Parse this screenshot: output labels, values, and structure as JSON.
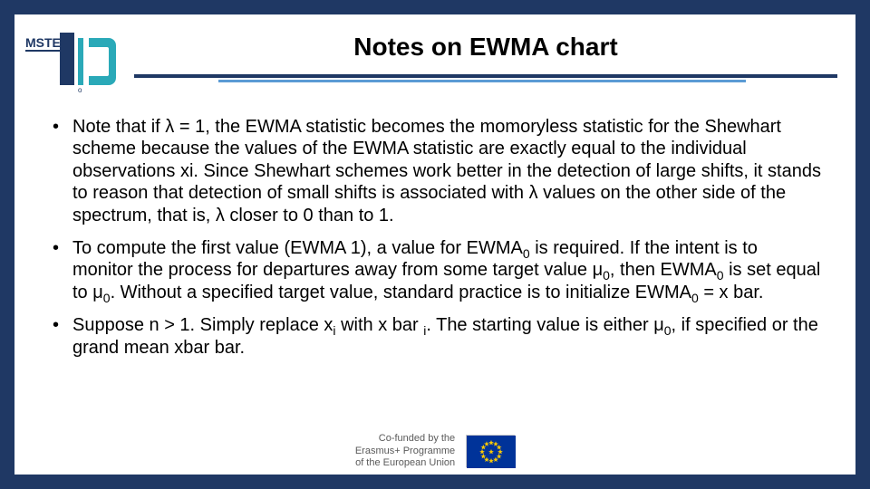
{
  "colors": {
    "frame": "#1f3864",
    "rule_primary": "#1f3864",
    "rule_secondary": "#5b9bd5",
    "background": "#ffffff",
    "text": "#000000",
    "footer_text": "#5a5a5a",
    "eu_flag_bg": "#003399",
    "eu_flag_star": "#ffcc00",
    "logo_navy": "#1f3864",
    "logo_teal": "#2aa9b8"
  },
  "layout": {
    "slide_width": 960,
    "slide_height": 540,
    "frame_thickness": 16,
    "title_fontsize": 28,
    "body_fontsize": 20,
    "body_line_height": 1.22,
    "footer_fontsize": 11
  },
  "logo": {
    "text_top": "MSTE",
    "text_main": "4.0",
    "dot_label": "o"
  },
  "title": "Notes on EWMA chart",
  "bullets": [
    "Note that if λ = 1, the EWMA statistic becomes the momoryless statistic for the Shewhart scheme because the values of the EWMA statistic are exactly equal to the individual observations xi. Since Shewhart schemes work better in the detection of large shifts, it stands to reason that detection of small shifts is associated with λ values on the other side of the spectrum, that is, λ closer to 0 than to 1.",
    "To compute the first value (EWMA 1), a value for EWMA<sub>0</sub> is required. If the intent is to monitor the process for departures away from some target value μ<sub>0</sub>, then EWMA<sub>0</sub> is set equal to μ<sub>0</sub>. Without a specified target value, standard practice is to initialize EWMA<sub>0</sub> = x bar.",
    "Suppose n > 1. Simply replace x<sub>i</sub> with x bar <sub>i</sub>. The starting value is either μ<sub>0</sub>, if specified or the grand mean xbar bar."
  ],
  "footer": {
    "line1": "Co-funded by the",
    "line2": "Erasmus+ Programme",
    "line3": "of the European Union",
    "flag_alt": "EU flag"
  }
}
